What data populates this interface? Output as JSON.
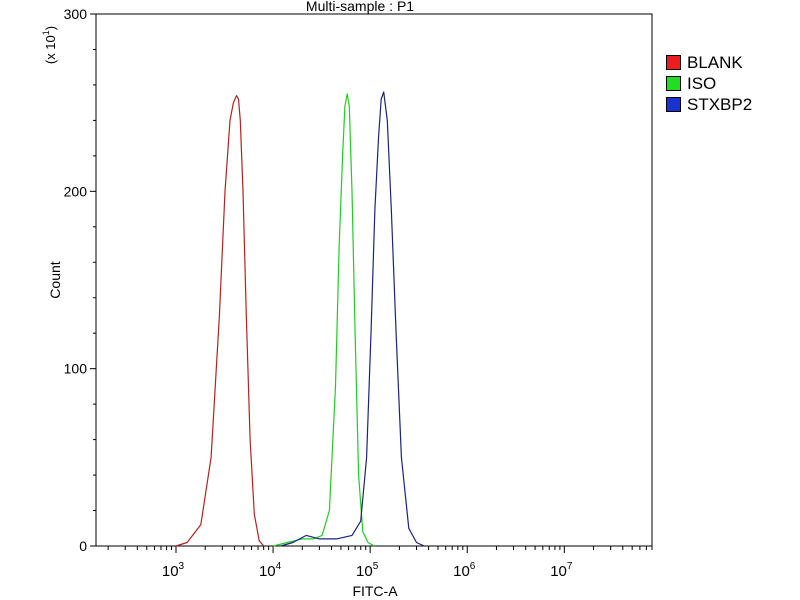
{
  "chart_data": {
    "type": "line",
    "title": "Multi-sample : P1",
    "xlabel": "FITC-A",
    "ylabel": "Count",
    "y_multiplier_label": "(x 10",
    "y_multiplier_exp": "1",
    "xscale": "log",
    "xlim": [
      150,
      80000000
    ],
    "ylim": [
      0,
      300
    ],
    "x_ticks": [
      {
        "base": "10",
        "exp": "3",
        "value": 1000
      },
      {
        "base": "10",
        "exp": "4",
        "value": 10000
      },
      {
        "base": "10",
        "exp": "5",
        "value": 100000
      },
      {
        "base": "10",
        "exp": "6",
        "value": 1000000
      },
      {
        "base": "10",
        "exp": "7",
        "value": 10000000
      }
    ],
    "y_ticks": [
      {
        "label": "0",
        "value": 0
      },
      {
        "label": "100",
        "value": 100
      },
      {
        "label": "200",
        "value": 200
      },
      {
        "label": "300",
        "value": 300
      }
    ],
    "legend_position": "top-right",
    "series": [
      {
        "name": "BLANK",
        "color": "#b22222",
        "legend_color": "#ee1c1c",
        "x": [
          1000,
          1300,
          1800,
          2300,
          2800,
          3200,
          3600,
          3900,
          4200,
          4400,
          4600,
          4900,
          5300,
          5800,
          6400,
          7200,
          8000
        ],
        "y": [
          0,
          2,
          12,
          50,
          130,
          200,
          240,
          250,
          254,
          252,
          240,
          200,
          130,
          60,
          18,
          3,
          0
        ]
      },
      {
        "name": "ISO",
        "color": "#22cc22",
        "legend_color": "#22dd22",
        "x": [
          10000,
          14000,
          20000,
          26000,
          32000,
          38000,
          44000,
          48000,
          52000,
          55000,
          58000,
          61000,
          65000,
          70000,
          76000,
          84000,
          95000,
          110000
        ],
        "y": [
          0,
          2,
          4,
          4,
          6,
          20,
          90,
          170,
          220,
          248,
          255,
          248,
          200,
          120,
          40,
          8,
          2,
          0
        ]
      },
      {
        "name": "STXBP2",
        "color": "#1a237e",
        "legend_color": "#1a33cc",
        "x": [
          12000,
          16000,
          22000,
          30000,
          45000,
          65000,
          80000,
          92000,
          102000,
          112000,
          122000,
          130000,
          138000,
          150000,
          165000,
          185000,
          210000,
          250000,
          300000,
          360000
        ],
        "y": [
          0,
          2,
          6,
          4,
          4,
          6,
          14,
          50,
          120,
          190,
          230,
          252,
          256,
          240,
          190,
          120,
          50,
          10,
          2,
          0
        ]
      }
    ]
  }
}
